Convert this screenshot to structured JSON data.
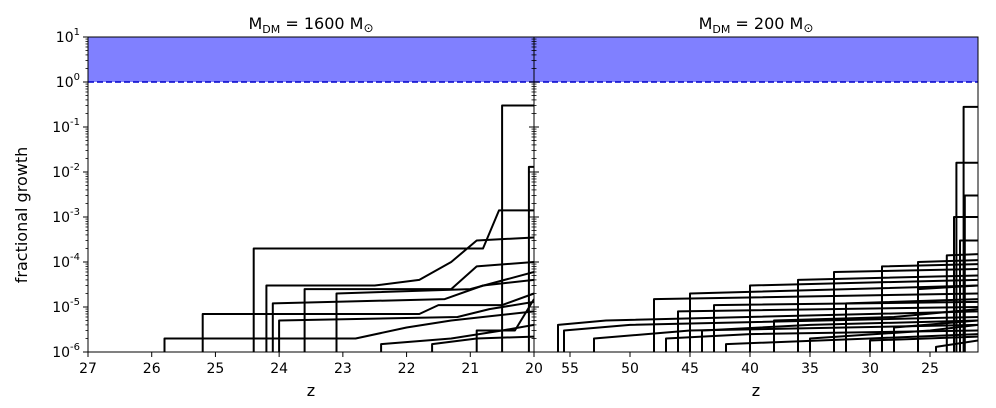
{
  "chart_data": [
    {
      "type": "line",
      "title": "M_DM = 1600 M_⊙",
      "title_parts": {
        "main": "M",
        "sub": "DM",
        "rest": " = 1600 M",
        "sym": "⊙"
      },
      "xlabel": "z",
      "ylabel": "fractional growth",
      "xlim": [
        27,
        20
      ],
      "ylim": [
        1e-06,
        10
      ],
      "yscale": "log",
      "x_ticks": [
        27,
        26,
        25,
        24,
        23,
        22,
        21,
        20
      ],
      "y_ticks": [
        {
          "exp": -6,
          "base": "10",
          "sup": "-6"
        },
        {
          "exp": -5,
          "base": "10",
          "sup": "-5"
        },
        {
          "exp": -4,
          "base": "10",
          "sup": "-4"
        },
        {
          "exp": -3,
          "base": "10",
          "sup": "-3"
        },
        {
          "exp": -2,
          "base": "10",
          "sup": "-2"
        },
        {
          "exp": -1,
          "base": "10",
          "sup": "-1"
        },
        {
          "exp": 0,
          "base": "10",
          "sup": "0"
        },
        {
          "exp": 1,
          "base": "10",
          "sup": "1"
        }
      ],
      "shaded_band": {
        "y_range": [
          1,
          10
        ],
        "color": "#8080ff"
      },
      "reference_line": {
        "y": 1,
        "style": "dashed",
        "color": "#0000cc"
      },
      "line_color": "#000000",
      "series": [
        {
          "points": [
            [
              20.5,
              1e-06
            ],
            [
              20.5,
              0.3
            ],
            [
              20.0,
              0.3
            ]
          ]
        },
        {
          "points": [
            [
              20.08,
              1e-06
            ],
            [
              20.08,
              0.013
            ],
            [
              20.0,
              0.013
            ]
          ]
        },
        {
          "points": [
            [
              24.4,
              1e-06
            ],
            [
              24.4,
              0.0002
            ],
            [
              20.8,
              0.0002
            ],
            [
              20.55,
              0.0014
            ],
            [
              20.0,
              0.0014
            ]
          ]
        },
        {
          "points": [
            [
              24.2,
              1e-06
            ],
            [
              24.2,
              3e-05
            ],
            [
              22.5,
              3e-05
            ],
            [
              21.8,
              4e-05
            ],
            [
              21.3,
              0.0001
            ],
            [
              20.9,
              0.0003
            ],
            [
              20.0,
              0.00035
            ]
          ]
        },
        {
          "points": [
            [
              23.6,
              1e-06
            ],
            [
              23.6,
              2.5e-05
            ],
            [
              21.3,
              2.5e-05
            ],
            [
              20.9,
              8e-05
            ],
            [
              20.0,
              0.0001
            ]
          ]
        },
        {
          "points": [
            [
              23.1,
              1e-06
            ],
            [
              23.1,
              2e-05
            ],
            [
              21.0,
              2.5e-05
            ],
            [
              20.0,
              6e-05
            ]
          ]
        },
        {
          "points": [
            [
              24.1,
              1e-06
            ],
            [
              24.1,
              1.2e-05
            ],
            [
              21.4,
              1.5e-05
            ],
            [
              20.8,
              3e-05
            ],
            [
              20.0,
              4e-05
            ]
          ]
        },
        {
          "points": [
            [
              25.2,
              1e-06
            ],
            [
              25.2,
              7e-06
            ],
            [
              21.8,
              7e-06
            ],
            [
              21.5,
              1.1e-05
            ],
            [
              20.5,
              1.1e-05
            ],
            [
              20.0,
              2e-05
            ]
          ]
        },
        {
          "points": [
            [
              24.0,
              1e-06
            ],
            [
              24.0,
              5e-06
            ],
            [
              21.2,
              6e-06
            ],
            [
              20.7,
              9e-06
            ],
            [
              20.0,
              1.3e-05
            ]
          ]
        },
        {
          "points": [
            [
              25.8,
              1e-06
            ],
            [
              25.8,
              2e-06
            ],
            [
              22.8,
              2e-06
            ],
            [
              22.0,
              3.5e-06
            ],
            [
              21.3,
              5e-06
            ],
            [
              20.0,
              8e-06
            ]
          ]
        },
        {
          "points": [
            [
              22.4,
              1e-06
            ],
            [
              22.4,
              1.5e-06
            ],
            [
              21.3,
              2e-06
            ],
            [
              20.5,
              3e-06
            ],
            [
              20.0,
              4e-06
            ]
          ]
        },
        {
          "points": [
            [
              21.6,
              1e-06
            ],
            [
              21.6,
              1.5e-06
            ],
            [
              20.9,
              2e-06
            ],
            [
              20.0,
              2.2e-06
            ]
          ]
        },
        {
          "points": [
            [
              20.9,
              1e-06
            ],
            [
              20.9,
              3e-06
            ],
            [
              20.3,
              3e-06
            ],
            [
              20.0,
              1.5e-05
            ]
          ]
        }
      ]
    },
    {
      "type": "line",
      "title": "M_DM = 200 M_⊙",
      "title_parts": {
        "main": "M",
        "sub": "DM",
        "rest": " = 200 M",
        "sym": "⊙"
      },
      "xlabel": "z",
      "ylabel": "",
      "xlim": [
        58,
        21
      ],
      "ylim": [
        1e-06,
        10
      ],
      "yscale": "log",
      "x_ticks": [
        55,
        50,
        45,
        40,
        35,
        30,
        25
      ],
      "shaded_band": {
        "y_range": [
          1,
          10
        ],
        "color": "#8080ff"
      },
      "reference_line": {
        "y": 1,
        "style": "dashed",
        "color": "#0000cc"
      },
      "line_color": "#000000",
      "series": [
        {
          "points": [
            [
              22.2,
              1e-06
            ],
            [
              22.2,
              0.28
            ],
            [
              21.0,
              0.28
            ]
          ]
        },
        {
          "points": [
            [
              22.8,
              1e-06
            ],
            [
              22.8,
              0.016
            ],
            [
              21.0,
              0.016
            ]
          ]
        },
        {
          "points": [
            [
              22.1,
              1e-06
            ],
            [
              22.1,
              0.003
            ],
            [
              21.0,
              0.003
            ]
          ]
        },
        {
          "points": [
            [
              23.0,
              1e-06
            ],
            [
              23.0,
              0.001
            ],
            [
              21.0,
              0.001
            ]
          ]
        },
        {
          "points": [
            [
              22.5,
              1e-06
            ],
            [
              22.5,
              0.0003
            ],
            [
              21.0,
              0.0003
            ]
          ]
        },
        {
          "points": [
            [
              23.6,
              1e-06
            ],
            [
              23.6,
              0.00014
            ],
            [
              21.0,
              0.00015
            ]
          ]
        },
        {
          "points": [
            [
              26.0,
              1e-06
            ],
            [
              26.0,
              0.0001
            ],
            [
              21.0,
              0.00011
            ]
          ]
        },
        {
          "points": [
            [
              29.0,
              1e-06
            ],
            [
              29.0,
              8e-05
            ],
            [
              21.0,
              9e-05
            ]
          ]
        },
        {
          "points": [
            [
              33.0,
              1e-06
            ],
            [
              33.0,
              6e-05
            ],
            [
              21.0,
              7e-05
            ]
          ]
        },
        {
          "points": [
            [
              36.0,
              1e-06
            ],
            [
              36.0,
              4e-05
            ],
            [
              21.0,
              5e-05
            ]
          ]
        },
        {
          "points": [
            [
              40.0,
              1e-06
            ],
            [
              40.0,
              3e-05
            ],
            [
              21.0,
              4e-05
            ]
          ]
        },
        {
          "points": [
            [
              45.0,
              1e-06
            ],
            [
              45.0,
              2e-05
            ],
            [
              21.0,
              3e-05
            ]
          ]
        },
        {
          "points": [
            [
              48.0,
              1e-06
            ],
            [
              48.0,
              1.5e-05
            ],
            [
              21.0,
              2e-05
            ]
          ]
        },
        {
          "points": [
            [
              56.0,
              1e-06
            ],
            [
              56.0,
              4e-06
            ],
            [
              52.0,
              5e-06
            ],
            [
              21.0,
              8e-06
            ]
          ]
        },
        {
          "points": [
            [
              55.5,
              1e-06
            ],
            [
              55.5,
              3e-06
            ],
            [
              50.0,
              4e-06
            ],
            [
              21.0,
              6e-06
            ]
          ]
        },
        {
          "points": [
            [
              53.0,
              1e-06
            ],
            [
              53.0,
              2e-06
            ],
            [
              45.0,
              3e-06
            ],
            [
              21.0,
              4e-06
            ]
          ]
        },
        {
          "points": [
            [
              47.0,
              1e-06
            ],
            [
              47.0,
              2e-06
            ],
            [
              40.0,
              2.5e-06
            ],
            [
              21.0,
              3e-06
            ]
          ]
        },
        {
          "points": [
            [
              44.0,
              1e-06
            ],
            [
              44.0,
              3e-06
            ],
            [
              35.0,
              4e-06
            ],
            [
              21.0,
              5e-06
            ]
          ]
        },
        {
          "points": [
            [
              42.0,
              1e-06
            ],
            [
              42.0,
              1.5e-06
            ],
            [
              30.0,
              2e-06
            ],
            [
              21.0,
              2.5e-06
            ]
          ]
        },
        {
          "points": [
            [
              38.0,
              1e-06
            ],
            [
              38.0,
              5e-06
            ],
            [
              28.0,
              6e-06
            ],
            [
              21.0,
              9e-06
            ]
          ]
        },
        {
          "points": [
            [
              35.0,
              1e-06
            ],
            [
              35.0,
              2e-06
            ],
            [
              25.0,
              3e-06
            ],
            [
              21.0,
              4e-06
            ]
          ]
        },
        {
          "points": [
            [
              32.0,
              1e-06
            ],
            [
              32.0,
              1.2e-05
            ],
            [
              21.0,
              1.5e-05
            ]
          ]
        },
        {
          "points": [
            [
              30.0,
              1e-06
            ],
            [
              30.0,
              1.8e-06
            ],
            [
              21.0,
              2.2e-06
            ]
          ]
        },
        {
          "points": [
            [
              28.0,
              1e-06
            ],
            [
              28.0,
              3.5e-06
            ],
            [
              21.0,
              5e-06
            ]
          ]
        },
        {
          "points": [
            [
              26.0,
              1e-06
            ],
            [
              26.0,
              2.5e-05
            ],
            [
              21.0,
              3e-05
            ]
          ]
        },
        {
          "points": [
            [
              24.5,
              1e-06
            ],
            [
              24.5,
              1.3e-06
            ],
            [
              21.0,
              1.8e-06
            ]
          ]
        },
        {
          "points": [
            [
              46.0,
              1e-06
            ],
            [
              46.0,
              8e-06
            ],
            [
              21.0,
              1e-05
            ]
          ]
        },
        {
          "points": [
            [
              43.0,
              1e-06
            ],
            [
              43.0,
              1.1e-05
            ],
            [
              21.0,
              1.3e-05
            ]
          ]
        }
      ]
    }
  ]
}
